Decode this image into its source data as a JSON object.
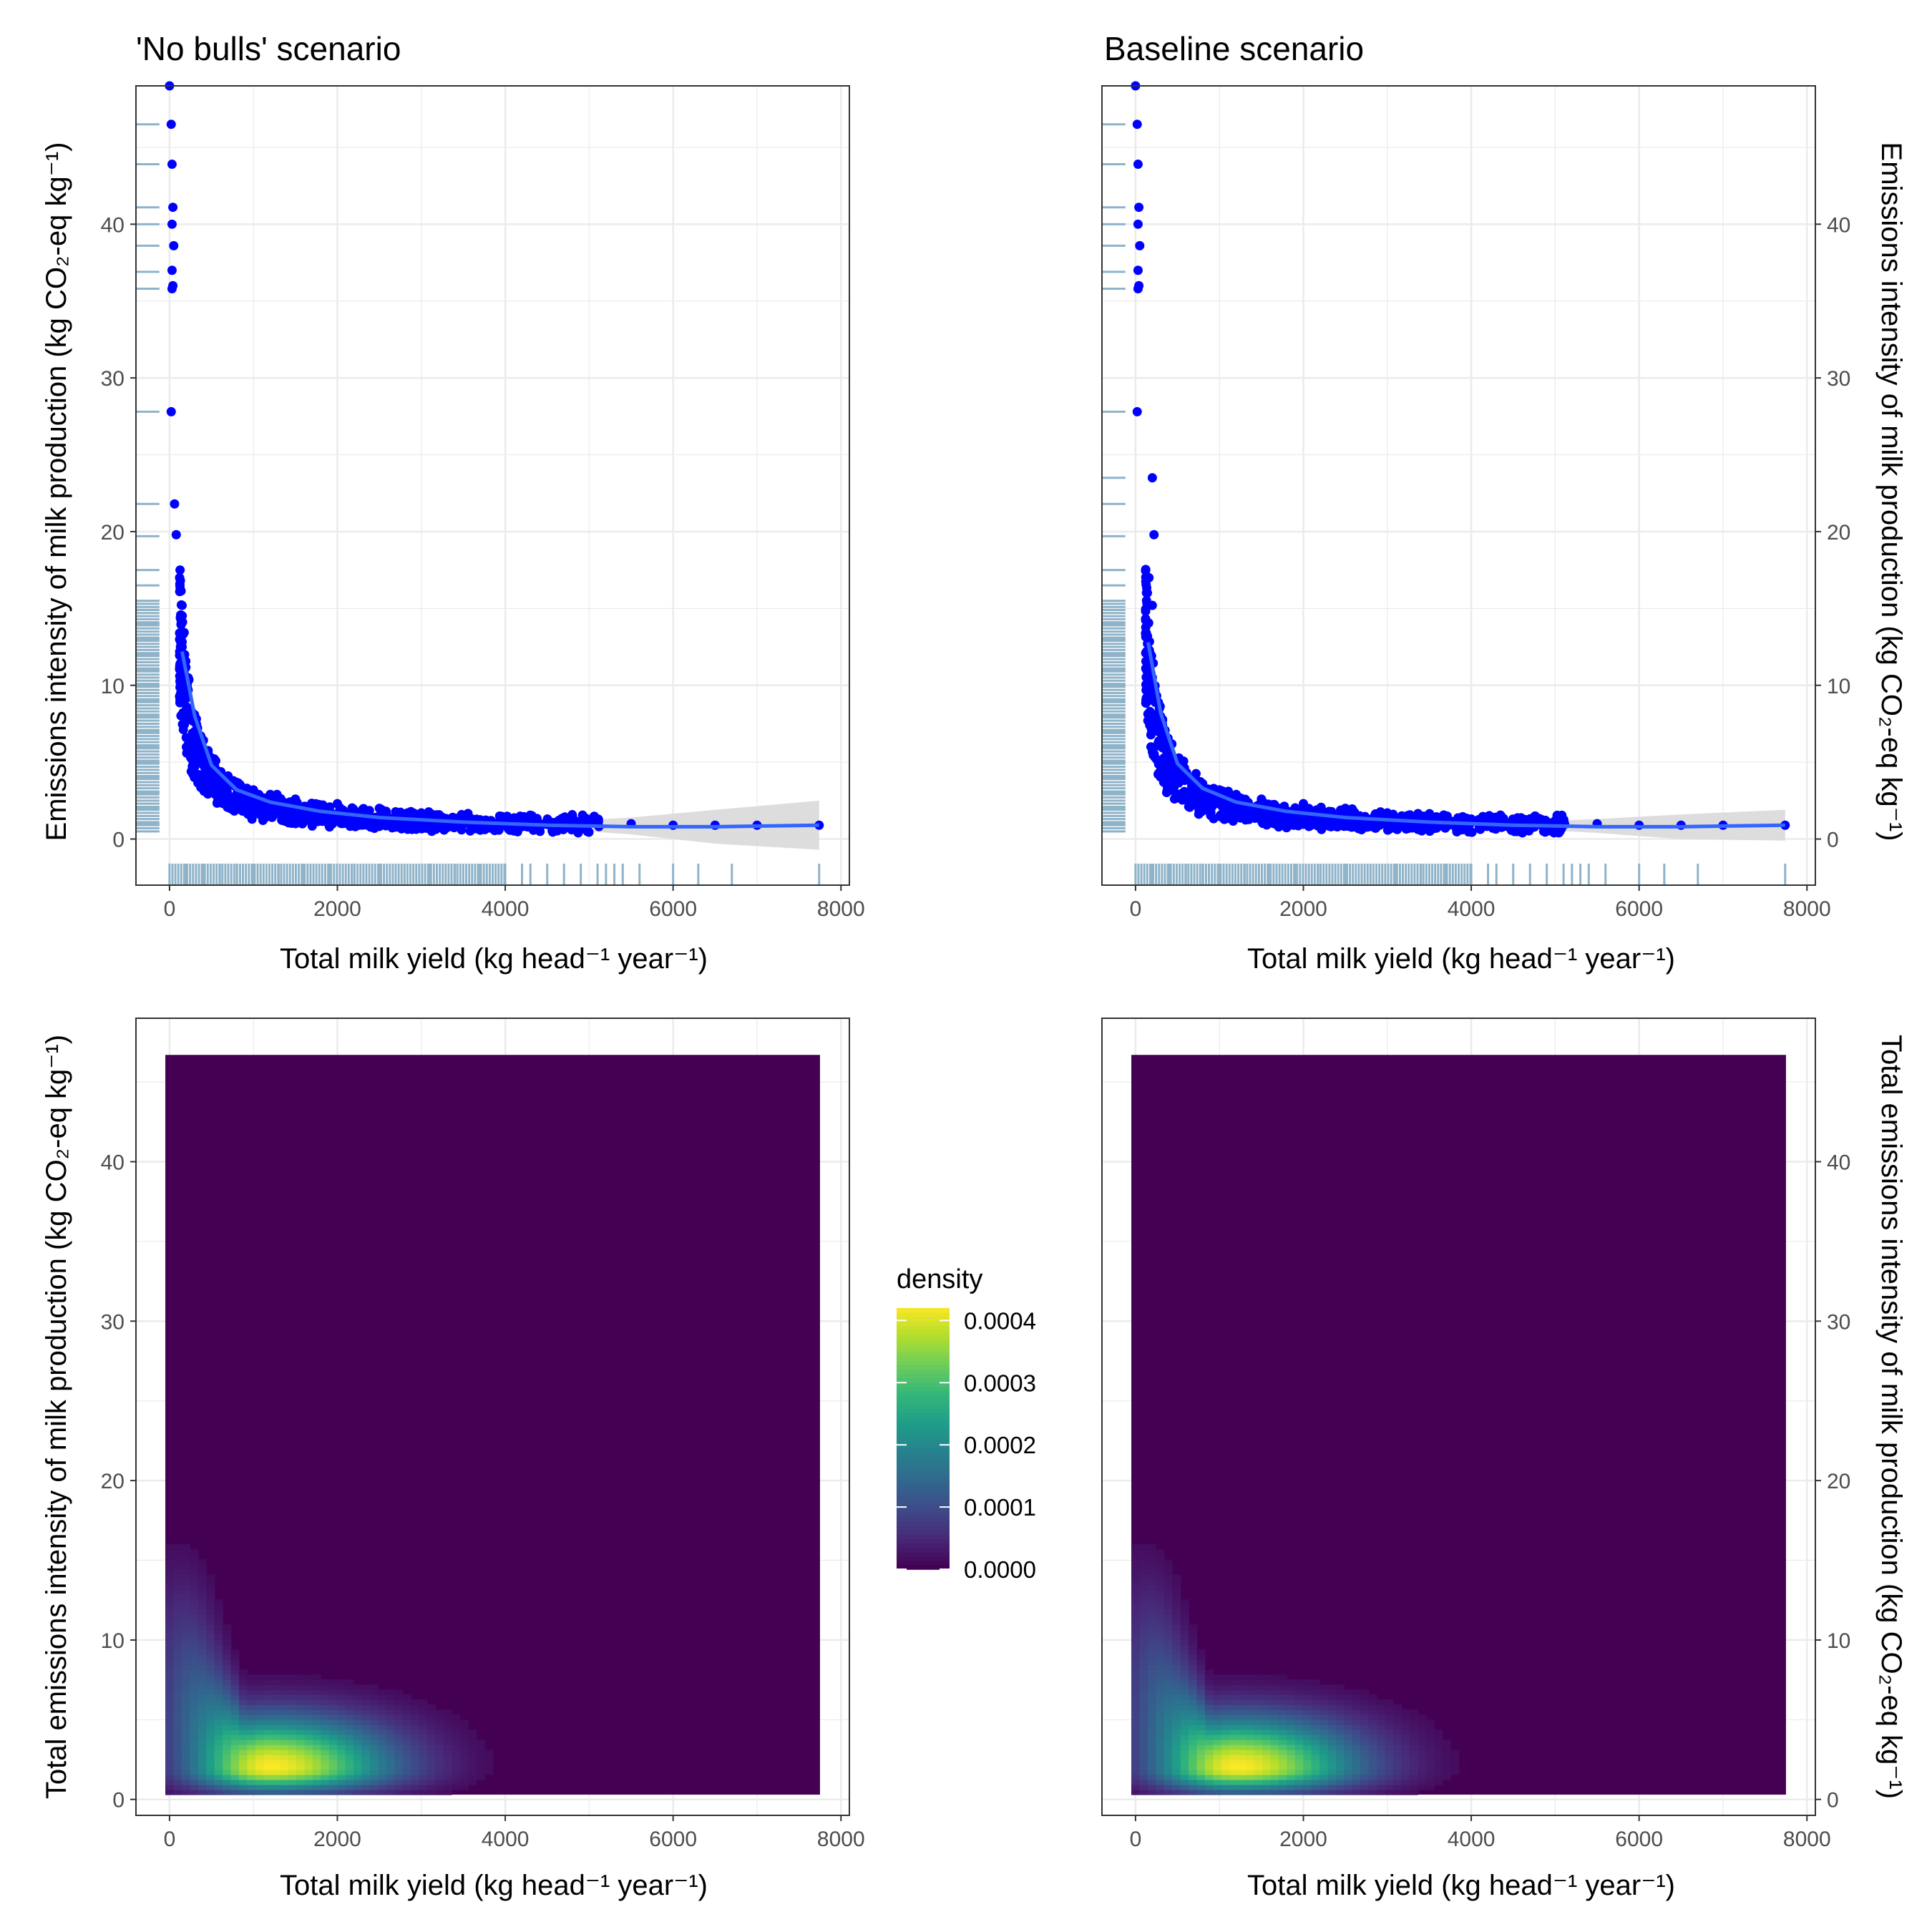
{
  "chart_data": [
    {
      "type": "scatter",
      "title": "'No bulls' scenario",
      "xlabel": "Total milk yield (kg head⁻¹ year⁻¹)",
      "ylabel": "Emissions intensity of milk production (kg CO₂-eq kg⁻¹)",
      "xlim": [
        -400,
        8100
      ],
      "ylim": [
        -3,
        49
      ],
      "x_ticks": [
        0,
        2000,
        4000,
        6000,
        8000
      ],
      "y_ticks": [
        0,
        10,
        20,
        30,
        40
      ],
      "grid": true,
      "series": [
        {
          "x": [
            0,
            20,
            30,
            40,
            30,
            50,
            30,
            40,
            30,
            20,
            60,
            80,
            120,
            150,
            120,
            180,
            200,
            150,
            250,
            300,
            350,
            400,
            500,
            600,
            800,
            1000,
            1200,
            1500,
            2000,
            2500,
            3000,
            3500,
            4000,
            4500,
            5000,
            5500,
            6000,
            6500,
            7000,
            7740
          ],
          "y": [
            49.0,
            46.5,
            43.9,
            41.1,
            40.0,
            38.6,
            37.0,
            36.0,
            35.8,
            27.8,
            21.8,
            19.8,
            17.0,
            15.2,
            13.4,
            12.0,
            10.5,
            9.0,
            8.0,
            7.0,
            6.0,
            5.2,
            4.6,
            4.0,
            3.6,
            3.2,
            2.9,
            2.6,
            2.3,
            2.0,
            1.7,
            1.5,
            1.3,
            1.2,
            1.1,
            1.0,
            0.9,
            0.9,
            0.9,
            0.9
          ]
        }
      ],
      "smooth": {
        "x": [
          150,
          300,
          500,
          800,
          1200,
          1800,
          2500,
          3500,
          4500,
          5500,
          6500,
          7740
        ],
        "y": [
          12.2,
          8.0,
          4.8,
          3.2,
          2.4,
          1.8,
          1.4,
          1.1,
          0.9,
          0.8,
          0.8,
          0.9
        ],
        "se_upper": [
          13.0,
          8.6,
          5.2,
          3.4,
          2.5,
          1.9,
          1.5,
          1.2,
          1.1,
          1.4,
          1.9,
          2.5
        ],
        "se_lower": [
          11.4,
          7.4,
          4.4,
          3.0,
          2.3,
          1.7,
          1.3,
          1.0,
          0.7,
          0.3,
          -0.3,
          -0.7
        ]
      },
      "rug_x": [
        0,
        200,
        400,
        600,
        800,
        1000,
        1300,
        1600,
        1900,
        2200,
        2500,
        2800,
        3100,
        3400,
        3700,
        4000,
        4200,
        4300,
        4500,
        4700,
        4900,
        5100,
        5200,
        5300,
        5400,
        5600,
        6000,
        6300,
        6700,
        7740
      ],
      "rug_y": [
        0.5,
        1,
        2,
        3,
        4,
        5,
        6,
        7,
        8,
        9,
        10,
        11,
        12,
        13,
        14,
        15.5,
        16.5,
        17.5,
        19.7,
        21.8,
        27.8,
        35.8,
        36.9,
        38.6,
        40.0,
        41.1,
        43.9,
        46.5
      ]
    },
    {
      "type": "scatter",
      "title": "Baseline scenario",
      "xlabel": "Total milk yield (kg head⁻¹ year⁻¹)",
      "ylabel": "Emissions intensity of milk production (kg CO₂-eq kg⁻¹)",
      "xlim": [
        -400,
        8100
      ],
      "ylim": [
        -3,
        49
      ],
      "x_ticks": [
        0,
        2000,
        4000,
        6000,
        8000
      ],
      "y_ticks": [
        0,
        10,
        20,
        30,
        40
      ],
      "grid": true,
      "series": [
        {
          "x": [
            0,
            20,
            30,
            40,
            30,
            50,
            30,
            40,
            30,
            20,
            200,
            220,
            160,
            200,
            120,
            180,
            200,
            150,
            250,
            300,
            350,
            400,
            500,
            600,
            800,
            1000,
            1200,
            1500,
            2000,
            2500,
            3000,
            3500,
            4000,
            4500,
            5000,
            5500,
            6000,
            6500,
            7000,
            7740
          ],
          "y": [
            49.0,
            46.5,
            43.9,
            41.1,
            40.0,
            38.6,
            37.0,
            36.0,
            35.8,
            27.8,
            23.5,
            19.8,
            17.0,
            15.2,
            13.4,
            12.0,
            10.5,
            9.0,
            8.0,
            7.0,
            6.0,
            5.2,
            4.6,
            4.0,
            3.6,
            3.2,
            2.9,
            2.6,
            2.3,
            2.0,
            1.7,
            1.5,
            1.3,
            1.2,
            1.1,
            1.0,
            0.9,
            0.9,
            0.9,
            0.9
          ]
        }
      ],
      "smooth": {
        "x": [
          150,
          300,
          500,
          800,
          1200,
          1800,
          2500,
          3500,
          4500,
          5500,
          6500,
          7740
        ],
        "y": [
          12.8,
          8.2,
          4.9,
          3.3,
          2.4,
          1.8,
          1.4,
          1.1,
          0.9,
          0.8,
          0.8,
          0.9
        ],
        "se_upper": [
          13.6,
          8.8,
          5.3,
          3.5,
          2.5,
          1.9,
          1.5,
          1.2,
          1.1,
          1.3,
          1.6,
          1.9
        ],
        "se_lower": [
          12.0,
          7.6,
          4.5,
          3.1,
          2.3,
          1.7,
          1.3,
          1.0,
          0.7,
          0.4,
          0.0,
          -0.1
        ]
      },
      "rug_x": [
        0,
        200,
        400,
        600,
        800,
        1000,
        1300,
        1600,
        1900,
        2200,
        2500,
        2800,
        3100,
        3400,
        3700,
        4000,
        4200,
        4300,
        4500,
        4700,
        4900,
        5100,
        5200,
        5300,
        5400,
        5600,
        6000,
        6300,
        6700,
        7740
      ],
      "rug_y": [
        0.5,
        1,
        2,
        3,
        4,
        5,
        6,
        7,
        8,
        9,
        10,
        11,
        12,
        13,
        14,
        15.5,
        16.5,
        17.5,
        19.7,
        21.8,
        23.5,
        27.8,
        35.8,
        36.9,
        38.6,
        40.0,
        41.1,
        43.9,
        46.5
      ]
    },
    {
      "type": "heatmap",
      "xlabel": "Total milk yield (kg head⁻¹ year⁻¹)",
      "ylabel": "Total emissions intensity of milk production (kg CO₂-eq kg⁻¹)",
      "xlim": [
        -400,
        8100
      ],
      "ylim": [
        -1,
        49
      ],
      "x_ticks": [
        0,
        2000,
        4000,
        6000,
        8000
      ],
      "y_ticks": [
        0,
        10,
        20,
        30,
        40
      ],
      "grid": true,
      "raster_x_range": [
        -50,
        7750
      ],
      "raster_y_range": [
        0.3,
        46.7
      ],
      "peak": {
        "x": 1200,
        "y": 2.0,
        "density": 0.00042
      },
      "colorscale": "viridis"
    },
    {
      "type": "heatmap",
      "xlabel": "Total milk yield (kg head⁻¹ year⁻¹)",
      "ylabel": "Total emissions intensity of milk production (kg CO₂-eq kg⁻¹)",
      "xlim": [
        -400,
        8100
      ],
      "ylim": [
        -1,
        49
      ],
      "x_ticks": [
        0,
        2000,
        4000,
        6000,
        8000
      ],
      "y_ticks": [
        0,
        10,
        20,
        30,
        40
      ],
      "grid": true,
      "raster_x_range": [
        -50,
        7750
      ],
      "raster_y_range": [
        0.3,
        46.7
      ],
      "peak": {
        "x": 1200,
        "y": 2.0,
        "density": 0.00042
      },
      "colorscale": "viridis"
    }
  ],
  "legend": {
    "title": "density",
    "position": "center",
    "ticks": [
      "0.0000",
      "0.0001",
      "0.0002",
      "0.0003",
      "0.0004"
    ],
    "tick_values": [
      0,
      0.0001,
      0.0002,
      0.0003,
      0.0004
    ],
    "max": 0.00042
  },
  "colors": {
    "points": "#0000ff",
    "smooth_line": "#3366ff",
    "se_band": "#d9d9d9",
    "rug": "#8fb3c9",
    "viridis_low": "#440154",
    "viridis_high": "#fde725"
  }
}
